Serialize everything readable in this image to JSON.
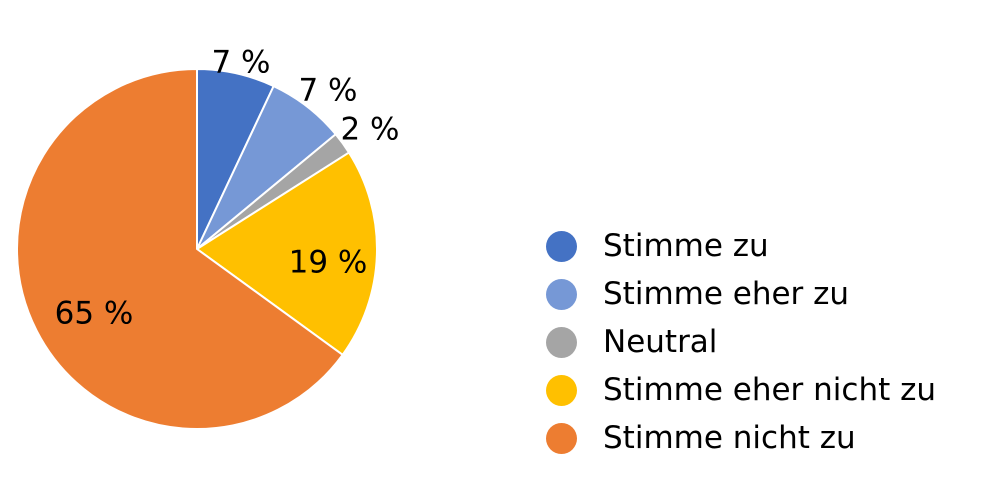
{
  "chart_data": {
    "type": "pie",
    "title": "",
    "legend_position": "right",
    "slices": [
      {
        "label": "Stimme zu",
        "value": 7,
        "value_label": "7 %",
        "color": "#4472C4"
      },
      {
        "label": "Stimme eher zu",
        "value": 7,
        "value_label": "7 %",
        "color": "#7698D6"
      },
      {
        "label": "Neutral",
        "value": 2,
        "value_label": "2 %",
        "color": "#A5A5A5"
      },
      {
        "label": "Stimme eher nicht zu",
        "value": 19,
        "value_label": "19 %",
        "color": "#FFC000"
      },
      {
        "label": "Stimme nicht zu",
        "value": 65,
        "value_label": "65 %",
        "color": "#ED7D31"
      }
    ]
  }
}
